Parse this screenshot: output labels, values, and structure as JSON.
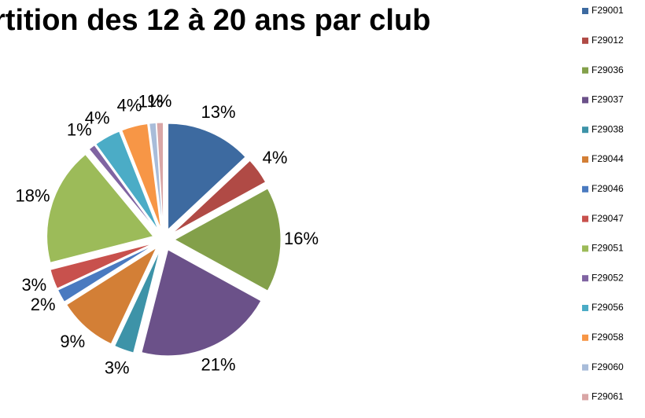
{
  "chart_data": {
    "type": "pie",
    "title": "rtition des 12 à 20 ans par club",
    "categories": [
      "F29001",
      "F29012",
      "F29036",
      "F29037",
      "F29038",
      "F29044",
      "F29046",
      "F29047",
      "F29051",
      "F29052",
      "F29056",
      "F29058",
      "F29060",
      "F29061"
    ],
    "values": [
      13,
      4,
      16,
      21,
      3,
      9,
      2,
      3,
      18,
      1,
      4,
      4,
      1,
      1
    ],
    "value_labels": [
      "13%",
      "4%",
      "16%",
      "21%",
      "3%",
      "9%",
      "2%",
      "3%",
      "18%",
      "1%",
      "4%",
      "4%",
      "1%",
      "1%"
    ],
    "colors": [
      "#3d6aa0",
      "#b04a45",
      "#83a04a",
      "#6b5189",
      "#3d93a8",
      "#d37f36",
      "#4a7ac0",
      "#c8514d",
      "#9cbb59",
      "#8064a2",
      "#4bacc6",
      "#f79646",
      "#a8bcd9",
      "#d9a6a6"
    ],
    "legend": "right"
  }
}
